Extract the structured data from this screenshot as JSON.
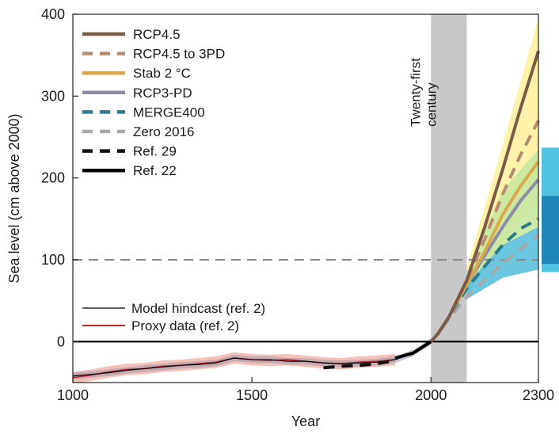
{
  "chart_data": {
    "type": "line",
    "title": "",
    "xlabel": "Year",
    "ylabel": "Sea level (cm above 2000)",
    "xlim": [
      1000,
      2300
    ],
    "ylim": [
      -50,
      400
    ],
    "xticks": [
      1000,
      1500,
      2000,
      2300
    ],
    "yticks": [
      0,
      100,
      200,
      300,
      400
    ],
    "grid": false,
    "legend_position": "top-left",
    "annotation": "Twenty-first century",
    "twenty_first_century_band": [
      2000,
      2100
    ],
    "reference_line": {
      "y": 100,
      "style": "dashed",
      "color": "#888888"
    },
    "zero_line": {
      "y": 0,
      "color": "#000000"
    },
    "series": [
      {
        "name": "RCP4.5",
        "color": "#7b5a48",
        "dash": "solid",
        "x": [
          2000,
          2020,
          2050,
          2100,
          2150,
          2200,
          2250,
          2300
        ],
        "y": [
          0,
          10,
          30,
          75,
          140,
          210,
          285,
          355
        ]
      },
      {
        "name": "RCP4.5 to 3PD",
        "color": "#b98a72",
        "dash": "dashed",
        "x": [
          2000,
          2020,
          2050,
          2100,
          2150,
          2200,
          2250,
          2300
        ],
        "y": [
          0,
          10,
          30,
          75,
          125,
          180,
          228,
          270
        ]
      },
      {
        "name": "Stab 2 °C",
        "color": "#d9a94c",
        "dash": "solid",
        "x": [
          2000,
          2020,
          2050,
          2100,
          2150,
          2200,
          2250,
          2300
        ],
        "y": [
          0,
          10,
          30,
          70,
          110,
          155,
          190,
          220
        ]
      },
      {
        "name": "RCP3-PD",
        "color": "#8c8ca8",
        "dash": "solid",
        "x": [
          2000,
          2020,
          2050,
          2100,
          2150,
          2200,
          2250,
          2300
        ],
        "y": [
          0,
          10,
          30,
          70,
          105,
          140,
          172,
          198
        ]
      },
      {
        "name": "MERGE400",
        "color": "#2a7a8c",
        "dash": "dashed",
        "x": [
          2000,
          2020,
          2050,
          2100,
          2150,
          2200,
          2250,
          2300
        ],
        "y": [
          0,
          10,
          30,
          65,
          92,
          118,
          138,
          150
        ]
      },
      {
        "name": "Zero 2016",
        "color": "#a8a8a8",
        "dash": "dashed",
        "x": [
          2000,
          2020,
          2050,
          2100,
          2150,
          2200,
          2250,
          2300
        ],
        "y": [
          0,
          10,
          28,
          55,
          75,
          95,
          113,
          130
        ]
      },
      {
        "name": "Ref. 29",
        "color": "#111111",
        "dash": "dashed",
        "x": [
          1700,
          1750,
          1800,
          1850,
          1900
        ],
        "y": [
          -32,
          -30,
          -29,
          -27,
          -23
        ]
      },
      {
        "name": "Ref. 22",
        "color": "#000000",
        "dash": "solid",
        "x": [
          1900,
          1950,
          2000
        ],
        "y": [
          -20,
          -14,
          0
        ]
      },
      {
        "name": "Model hindcast (ref. 2)",
        "color": "#000000",
        "dash": "thin",
        "x": [
          1000,
          1050,
          1100,
          1150,
          1200,
          1250,
          1300,
          1350,
          1400,
          1450,
          1500,
          1550,
          1600,
          1650,
          1700,
          1750,
          1800,
          1850,
          1900,
          1950,
          2000
        ],
        "y": [
          -42,
          -40,
          -38,
          -35,
          -33,
          -31,
          -29,
          -28,
          -26,
          -20,
          -22,
          -22,
          -24,
          -24,
          -26,
          -27,
          -26,
          -25,
          -22,
          -14,
          0
        ]
      },
      {
        "name": "Proxy data (ref. 2)",
        "color": "#c0282d",
        "dash": "solid",
        "x": [
          1000,
          1050,
          1100,
          1150,
          1200,
          1250,
          1300,
          1350,
          1400,
          1450,
          1500,
          1550,
          1600,
          1650,
          1700,
          1750,
          1800,
          1850,
          1900
        ],
        "y": [
          -44,
          -41,
          -37,
          -34,
          -33,
          -30,
          -29,
          -27,
          -25,
          -20,
          -22,
          -23,
          -22,
          -24,
          -26,
          -27,
          -25,
          -24,
          -22
        ]
      }
    ],
    "uncertainty_bands": [
      {
        "color": "#fff2a0",
        "x": [
          2000,
          2050,
          2100,
          2200,
          2300
        ],
        "upper": [
          0,
          32,
          90,
          240,
          395
        ],
        "lower": [
          0,
          25,
          55,
          120,
          175
        ]
      },
      {
        "color": "#c8e8a0",
        "x": [
          2000,
          2050,
          2100,
          2200,
          2300
        ],
        "upper": [
          0,
          31,
          85,
          185,
          235
        ],
        "lower": [
          0,
          26,
          60,
          115,
          140
        ]
      },
      {
        "color": "#5bc0dd",
        "x": [
          2000,
          2050,
          2100,
          2200,
          2300
        ],
        "upper": [
          0,
          28,
          70,
          118,
          140
        ],
        "lower": [
          0,
          24,
          52,
          78,
          88
        ]
      }
    ],
    "side_bars": [
      {
        "color": "#4fc3e0",
        "low": 85,
        "high": 237
      },
      {
        "color": "#1e86b8",
        "low": 95,
        "high": 178
      }
    ]
  }
}
